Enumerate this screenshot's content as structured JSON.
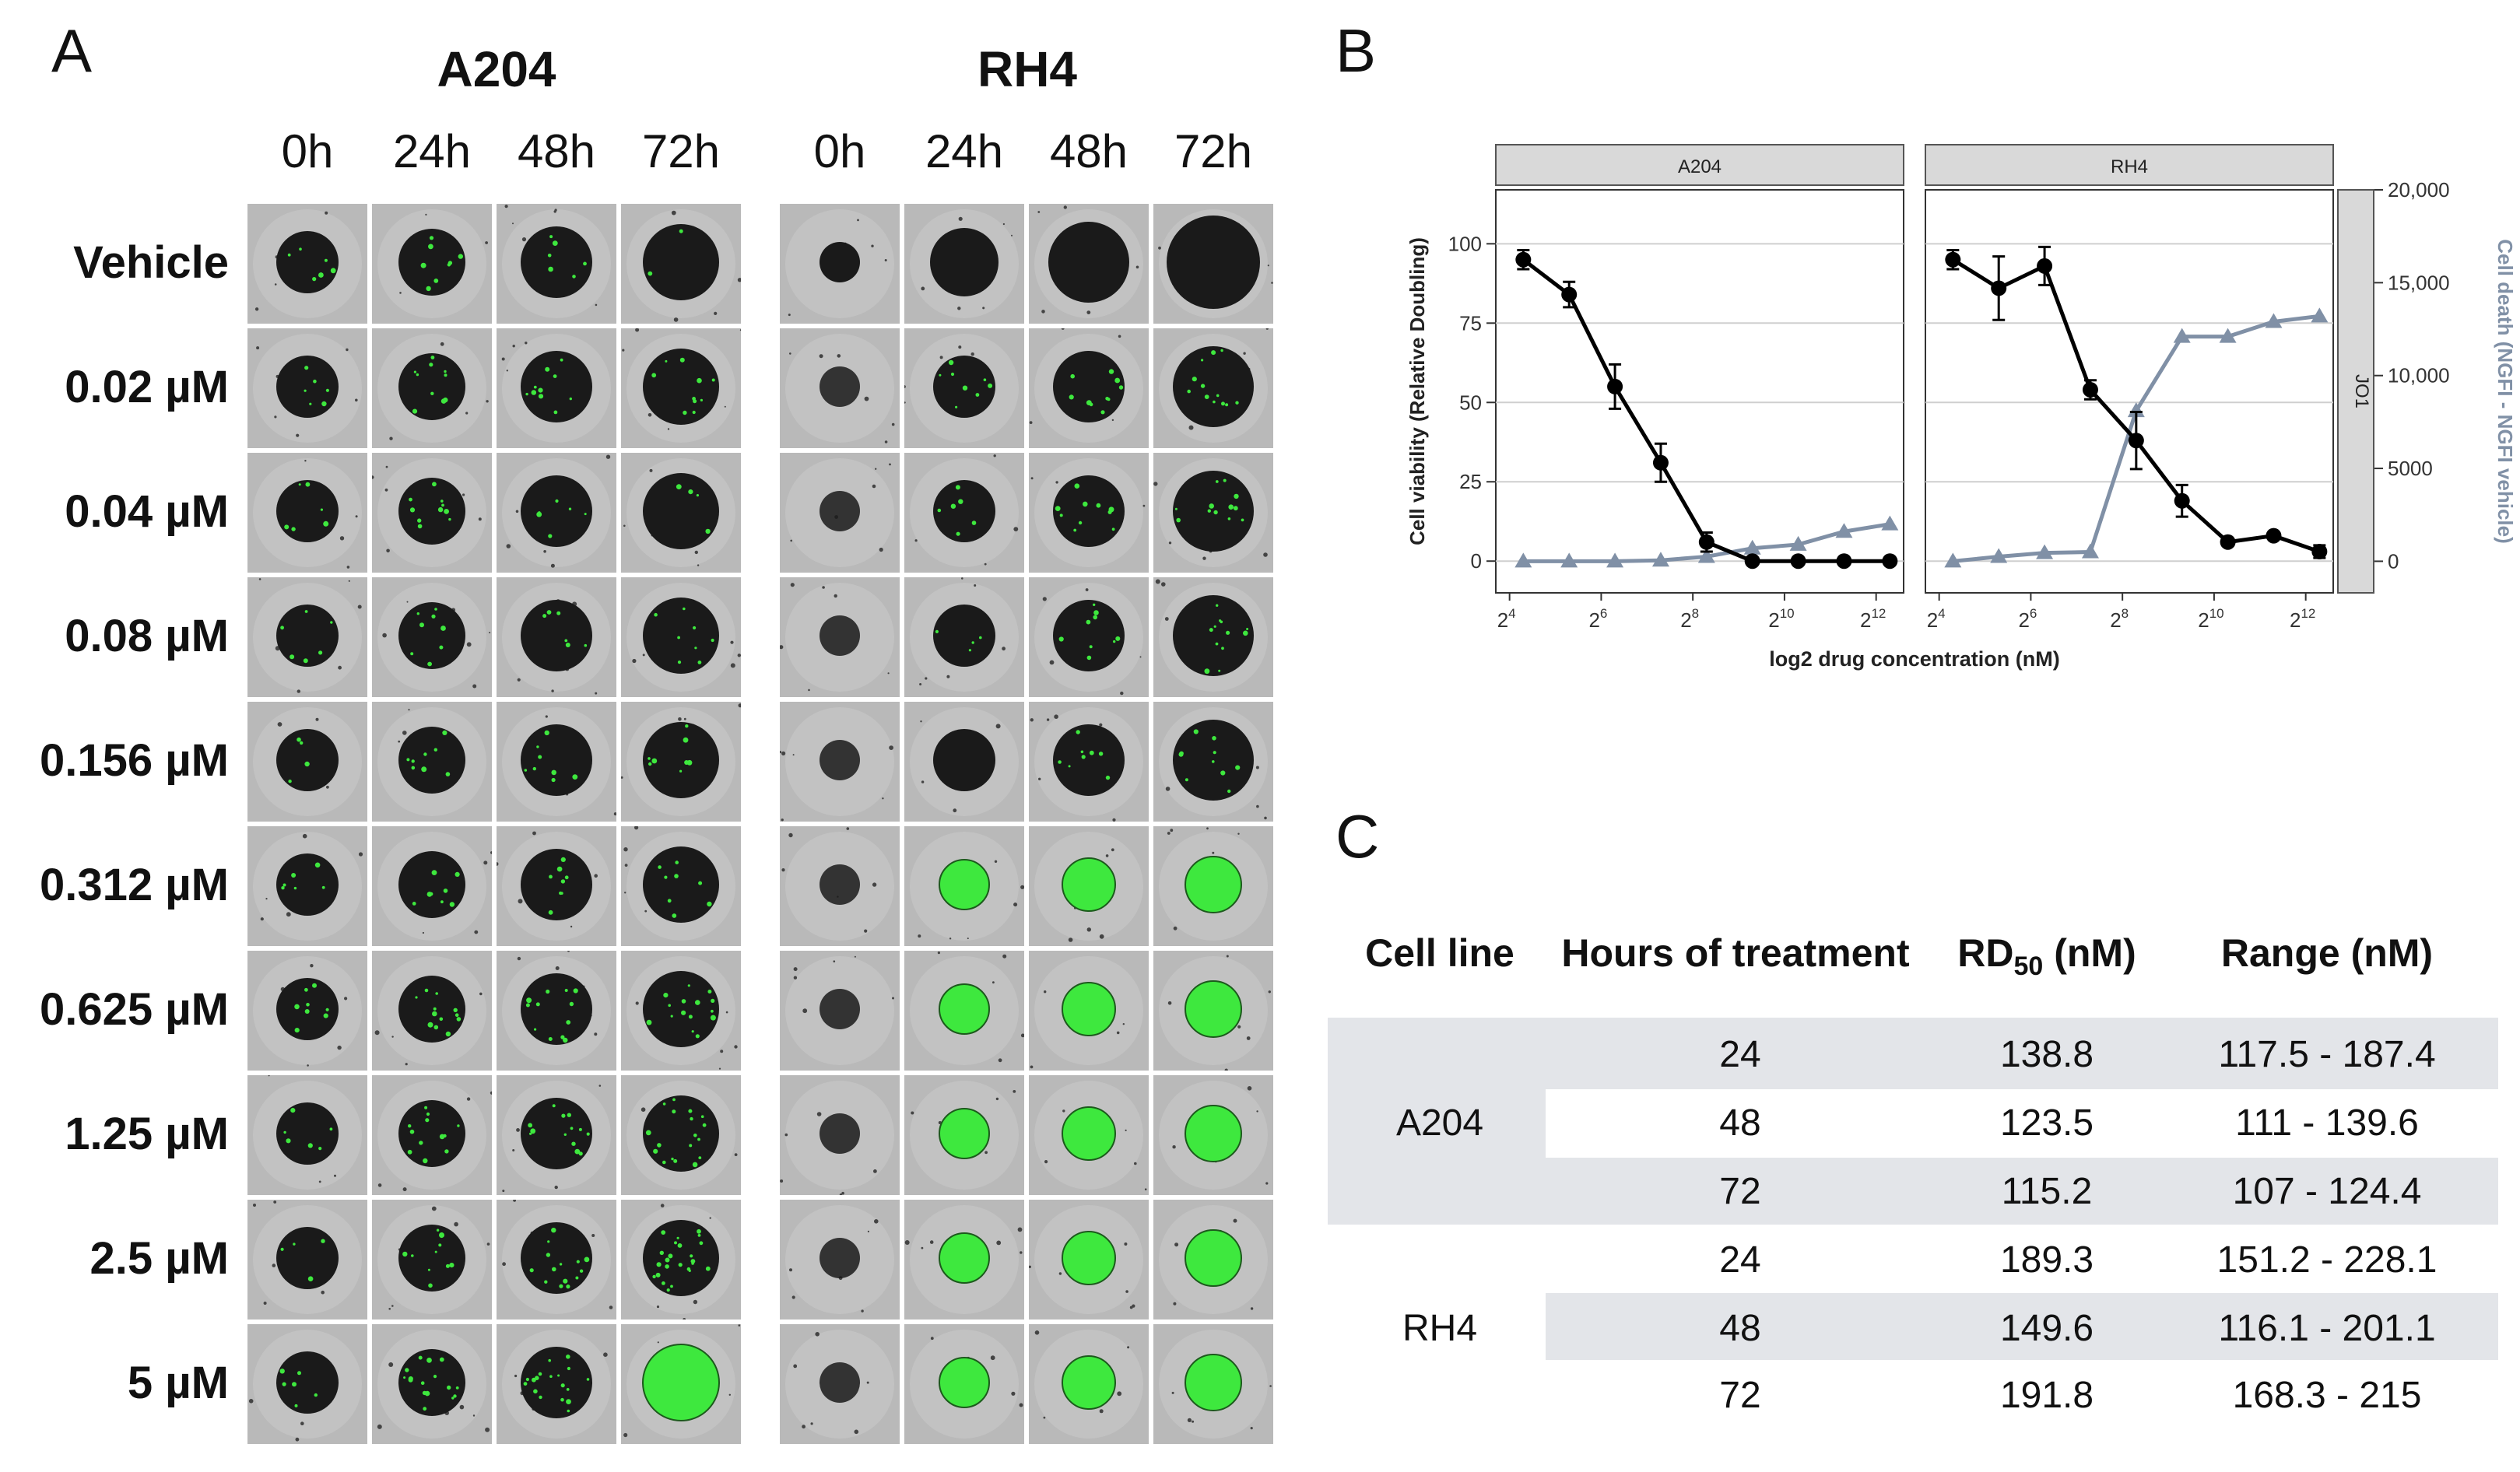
{
  "panelA": {
    "letter": "A",
    "cell_lines": [
      "A204",
      "RH4"
    ],
    "hours": [
      "0h",
      "24h",
      "48h",
      "72h"
    ],
    "concentrations": [
      "Vehicle",
      "0.02 µM",
      "0.04 µM",
      "0.08 µM",
      "0.156 µM",
      "0.312 µM",
      "0.625 µM",
      "1.25  µM",
      "2.5 µM",
      "5 µM"
    ],
    "colors": {
      "tile_bg": "#b9b9b9",
      "spheroid": "#1a1a1a",
      "green": "#3ee83e"
    },
    "green_level": {
      "A204": [
        [
          0.15,
          0.2,
          0.15,
          0.05
        ],
        [
          0.15,
          0.25,
          0.25,
          0.25
        ],
        [
          0.15,
          0.25,
          0.15,
          0.1
        ],
        [
          0.15,
          0.2,
          0.15,
          0.2
        ],
        [
          0.1,
          0.2,
          0.2,
          0.2
        ],
        [
          0.15,
          0.2,
          0.2,
          0.2
        ],
        [
          0.2,
          0.3,
          0.3,
          0.4
        ],
        [
          0.15,
          0.3,
          0.35,
          0.45
        ],
        [
          0.1,
          0.3,
          0.35,
          0.6
        ],
        [
          0.15,
          0.4,
          0.45,
          0.7
        ]
      ],
      "RH4": [
        [
          0,
          0,
          0,
          0
        ],
        [
          0,
          0.2,
          0.25,
          0.3
        ],
        [
          0,
          0.15,
          0.25,
          0.3
        ],
        [
          0,
          0.1,
          0.25,
          0.3
        ],
        [
          0,
          0,
          0.2,
          0.25
        ],
        [
          0,
          0.7,
          0.9,
          0.95
        ],
        [
          0,
          0.75,
          1,
          1
        ],
        [
          0,
          0.8,
          1,
          1
        ],
        [
          0,
          0.8,
          1,
          1
        ],
        [
          0,
          0.8,
          1,
          1
        ]
      ]
    }
  },
  "panelB": {
    "letter": "B",
    "chart_data": {
      "type": "line",
      "facets": [
        "A204",
        "RH4"
      ],
      "right_strip_label": "JO1",
      "xlabel": "log2 drug concentration (nM)",
      "ylabel_left": "Cell viability (Relative Doubling)",
      "ylabel_right": "Cell death (NGFI - NGFI vehicle)",
      "x_ticks": [
        4,
        6,
        8,
        10,
        12
      ],
      "x_tick_base": "2",
      "xlim": [
        3.7,
        12.6
      ],
      "y_left_ticks": [
        "0",
        "25",
        "50",
        "75",
        "100"
      ],
      "y_left_lim": [
        -10,
        117
      ],
      "y_right_ticks": [
        "0",
        "5000",
        "10,000",
        "15,000",
        "20,000"
      ],
      "y_right_lim": [
        -1700,
        20000
      ],
      "series_colors": {
        "viability": "#000000",
        "death": "#8090a6"
      },
      "panels": [
        {
          "name": "A204",
          "x": [
            4.3,
            5.3,
            6.3,
            7.3,
            8.3,
            9.3,
            10.3,
            11.3,
            12.3
          ],
          "viability": [
            95,
            84,
            55,
            31,
            6,
            0,
            0,
            0,
            0
          ],
          "viability_err": [
            3,
            4,
            7,
            6,
            3,
            0,
            0,
            0,
            0
          ],
          "death": [
            0,
            0,
            0,
            50,
            250,
            700,
            900,
            1600,
            2000
          ]
        },
        {
          "name": "RH4",
          "x": [
            4.3,
            5.3,
            6.3,
            7.3,
            8.3,
            9.3,
            10.3,
            11.3,
            12.3
          ],
          "viability": [
            95,
            86,
            93,
            54,
            38,
            19,
            6,
            8,
            3
          ],
          "viability_err": [
            3,
            10,
            6,
            3,
            9,
            5,
            0,
            0,
            2
          ],
          "death": [
            0,
            250,
            450,
            500,
            8100,
            12100,
            12100,
            12900,
            13200
          ]
        }
      ]
    }
  },
  "panelC": {
    "letter": "C",
    "headers": [
      "Cell line",
      "Hours of treatment",
      "RD",
      "50",
      " (nM)",
      "Range (nM)"
    ],
    "rows": [
      {
        "cell_line": "A204",
        "hours": "24",
        "rd50": "138.8",
        "range": "117.5 - 187.4"
      },
      {
        "cell_line": "",
        "hours": "48",
        "rd50": "123.5",
        "range": "111 - 139.6"
      },
      {
        "cell_line": "",
        "hours": "72",
        "rd50": "115.2",
        "range": "107 - 124.4"
      },
      {
        "cell_line": "RH4",
        "hours": "24",
        "rd50": "189.3",
        "range": "151.2 - 228.1"
      },
      {
        "cell_line": "",
        "hours": "48",
        "rd50": "149.6",
        "range": "116.1 - 201.1"
      },
      {
        "cell_line": "",
        "hours": "72",
        "rd50": "191.8",
        "range": "168.3 - 215"
      }
    ],
    "band_color": "#e3e5e9"
  }
}
